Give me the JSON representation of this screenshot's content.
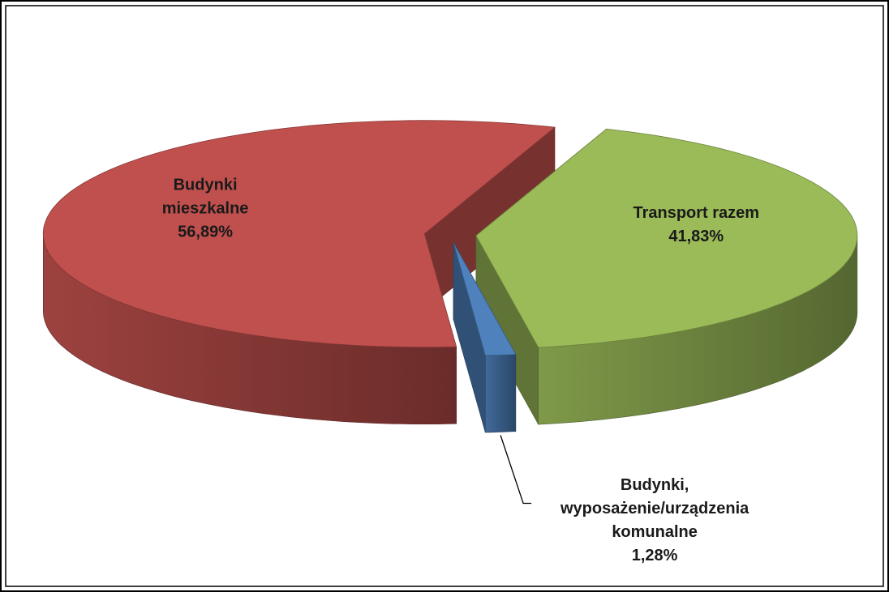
{
  "chart_data": {
    "type": "pie",
    "categories": [
      "Transport razem",
      "Budynki, wyposażenie/urządzenia komunalne",
      "Budynki mieszkalne"
    ],
    "values": [
      41.83,
      1.28,
      56.89
    ],
    "value_labels": [
      "41,83%",
      "1,28%",
      "56,89%"
    ],
    "colors": [
      "#9bbb59",
      "#4f81bd",
      "#c0504d"
    ]
  }
}
